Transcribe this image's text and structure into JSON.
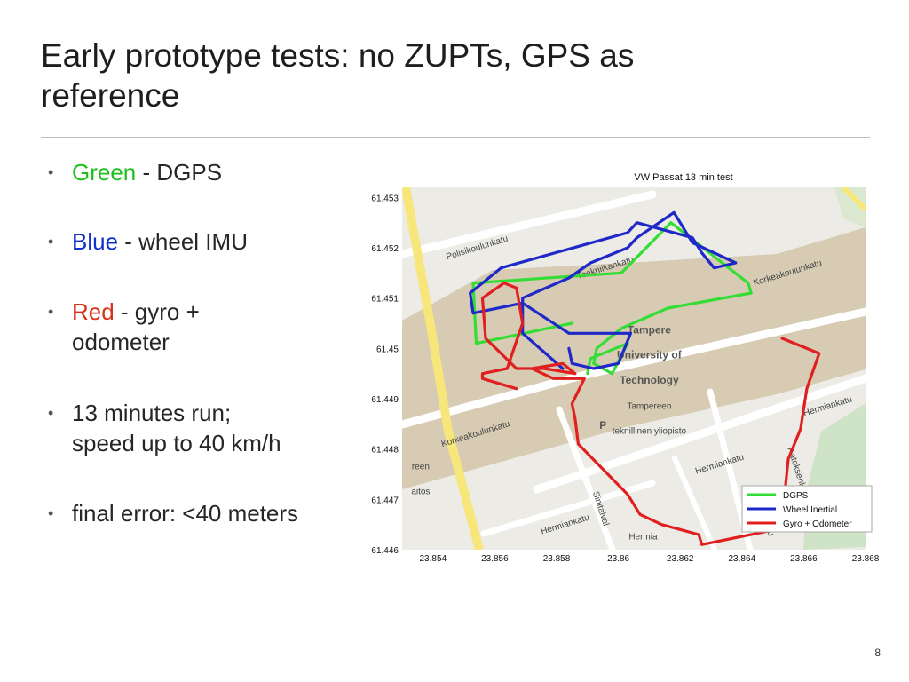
{
  "slide": {
    "title_line1": "Early prototype tests: no ZUPTs, GPS as",
    "title_line2": "reference",
    "page_number": "8"
  },
  "bullets": [
    {
      "marker": "•",
      "colored": "Green",
      "color": "#1fbf1f",
      "text": " - DGPS"
    },
    {
      "marker": "•",
      "colored": "Blue",
      "color": "#1030c8",
      "text": " - wheel IMU"
    },
    {
      "marker": "•",
      "colored": "Red",
      "color": "#d83318",
      "text": " - gyro +",
      "line2": "odometer"
    },
    {
      "marker": "•",
      "text": "13 minutes run;",
      "line2": "speed up to 40 km/h"
    },
    {
      "marker": "•",
      "text": "final error: <40 meters"
    }
  ],
  "chart_data": {
    "type": "line",
    "title": "VW Passat 13 min test",
    "xlabel": "",
    "ylabel": "",
    "xlim": [
      23.853,
      23.868
    ],
    "ylim": [
      61.446,
      61.4532
    ],
    "x_ticks": [
      "23.854",
      "23.856",
      "23.858",
      "23.86",
      "23.862",
      "23.864",
      "23.866",
      "23.868"
    ],
    "y_ticks": [
      "61.453",
      "61.452",
      "61.451",
      "61.45",
      "61.449",
      "61.448",
      "61.447",
      "61.446"
    ],
    "legend_position": "bottom-right",
    "series": [
      {
        "name": "DGPS",
        "color": "#33dd33",
        "x": [
          23.8585,
          23.8554,
          23.8553,
          23.8601,
          23.8617,
          23.8642,
          23.8643,
          23.8616,
          23.8601,
          23.8593,
          23.8592,
          23.8598,
          23.8603,
          23.8591,
          23.859
        ],
        "y": [
          61.4505,
          61.4501,
          61.4513,
          61.4515,
          61.4525,
          61.4513,
          61.4511,
          61.4508,
          61.4504,
          61.45,
          61.4497,
          61.4495,
          61.4501,
          61.4498,
          61.4495
        ]
      },
      {
        "name": "Wheel Inertial",
        "color": "#1f28c8",
        "x": [
          23.8582,
          23.8569,
          23.8569,
          23.8584,
          23.8591,
          23.8603,
          23.8606,
          23.8618,
          23.8624,
          23.8638,
          23.8631,
          23.8627,
          23.8624,
          23.8606,
          23.8603,
          23.8562,
          23.8552,
          23.8553,
          23.8569,
          23.8584,
          23.8604,
          23.86,
          23.8592,
          23.8585,
          23.8584
        ],
        "y": [
          61.4496,
          61.4503,
          61.451,
          61.4514,
          61.4517,
          61.452,
          61.4522,
          61.4527,
          61.4521,
          61.4517,
          61.4516,
          61.4519,
          61.4522,
          61.4525,
          61.4523,
          61.4516,
          61.4511,
          61.4507,
          61.4509,
          61.4503,
          61.4503,
          61.4497,
          61.4496,
          61.4497,
          61.45
        ]
      },
      {
        "name": "Gyro + Odometer",
        "color": "#e02020",
        "x": [
          23.8653,
          23.8665,
          23.8661,
          23.8659,
          23.8655,
          23.8654,
          23.8651,
          23.8627,
          23.8626,
          23.8614,
          23.8607,
          23.8603,
          23.8587,
          23.8586,
          23.8585,
          23.8589,
          23.8579,
          23.8572,
          23.8582,
          23.8586,
          23.8576,
          23.8567,
          23.8557,
          23.8556,
          23.8563,
          23.8567,
          23.8569,
          23.8564,
          23.8556,
          23.8556,
          23.8567
        ],
        "y": [
          61.4502,
          61.4499,
          61.4492,
          61.4484,
          61.4478,
          61.4472,
          61.4464,
          61.4461,
          61.4463,
          61.4465,
          61.4467,
          61.4471,
          61.4481,
          61.4486,
          61.4489,
          61.4494,
          61.4494,
          61.4496,
          61.4497,
          61.4495,
          61.4496,
          61.4496,
          61.4502,
          61.451,
          61.4513,
          61.4512,
          61.4505,
          61.4496,
          61.4495,
          61.4494,
          61.4492
        ]
      }
    ]
  },
  "map": {
    "labels": [
      {
        "text": "Polisikoulunkatu",
        "x": 23.85545,
        "y": 61.45195,
        "rot": -17
      },
      {
        "text": "Teekniikankatu",
        "x": 23.8596,
        "y": 61.45155,
        "rot": -17
      },
      {
        "text": "Korkeakoulunkatu",
        "x": 23.8655,
        "y": 61.45145,
        "rot": -17
      },
      {
        "text": "Tampere",
        "x": 23.861,
        "y": 61.4503,
        "rot": 0,
        "bold": true
      },
      {
        "text": "University of",
        "x": 23.861,
        "y": 61.4498,
        "rot": 0,
        "bold": true
      },
      {
        "text": "Technology",
        "x": 23.861,
        "y": 61.4493,
        "rot": 0,
        "bold": true
      },
      {
        "text": "Tampereen",
        "x": 23.861,
        "y": 61.4488,
        "rot": 0
      },
      {
        "text": "teknillinen yliopisto",
        "x": 23.861,
        "y": 61.4483,
        "rot": 0
      },
      {
        "text": "Hermiankatu",
        "x": 23.8668,
        "y": 61.4488,
        "rot": -17
      },
      {
        "text": "Korkeakoulunkatu",
        "x": 23.8554,
        "y": 61.44825,
        "rot": -17
      },
      {
        "text": "Hermiankatu",
        "x": 23.8633,
        "y": 61.44765,
        "rot": -17
      },
      {
        "text": "Hermiankatu",
        "x": 23.8583,
        "y": 61.44645,
        "rot": -17
      },
      {
        "text": "Hermia",
        "x": 23.8608,
        "y": 61.4462,
        "rot": 0
      },
      {
        "text": "Sinitaival",
        "x": 23.85935,
        "y": 61.4468,
        "rot": 72
      },
      {
        "text": "Aatoksenkatu",
        "x": 23.86575,
        "y": 61.4475,
        "rot": 72
      },
      {
        "text": "Visiokatu",
        "x": 23.8647,
        "y": 61.4466,
        "rot": 72
      },
      {
        "text": "reen",
        "x": 23.8536,
        "y": 61.4476,
        "rot": 0
      },
      {
        "text": "aitos",
        "x": 23.8536,
        "y": 61.4471,
        "rot": 0
      },
      {
        "text": "P",
        "x": 23.8595,
        "y": 61.4484,
        "rot": 0,
        "bold": true
      }
    ]
  }
}
